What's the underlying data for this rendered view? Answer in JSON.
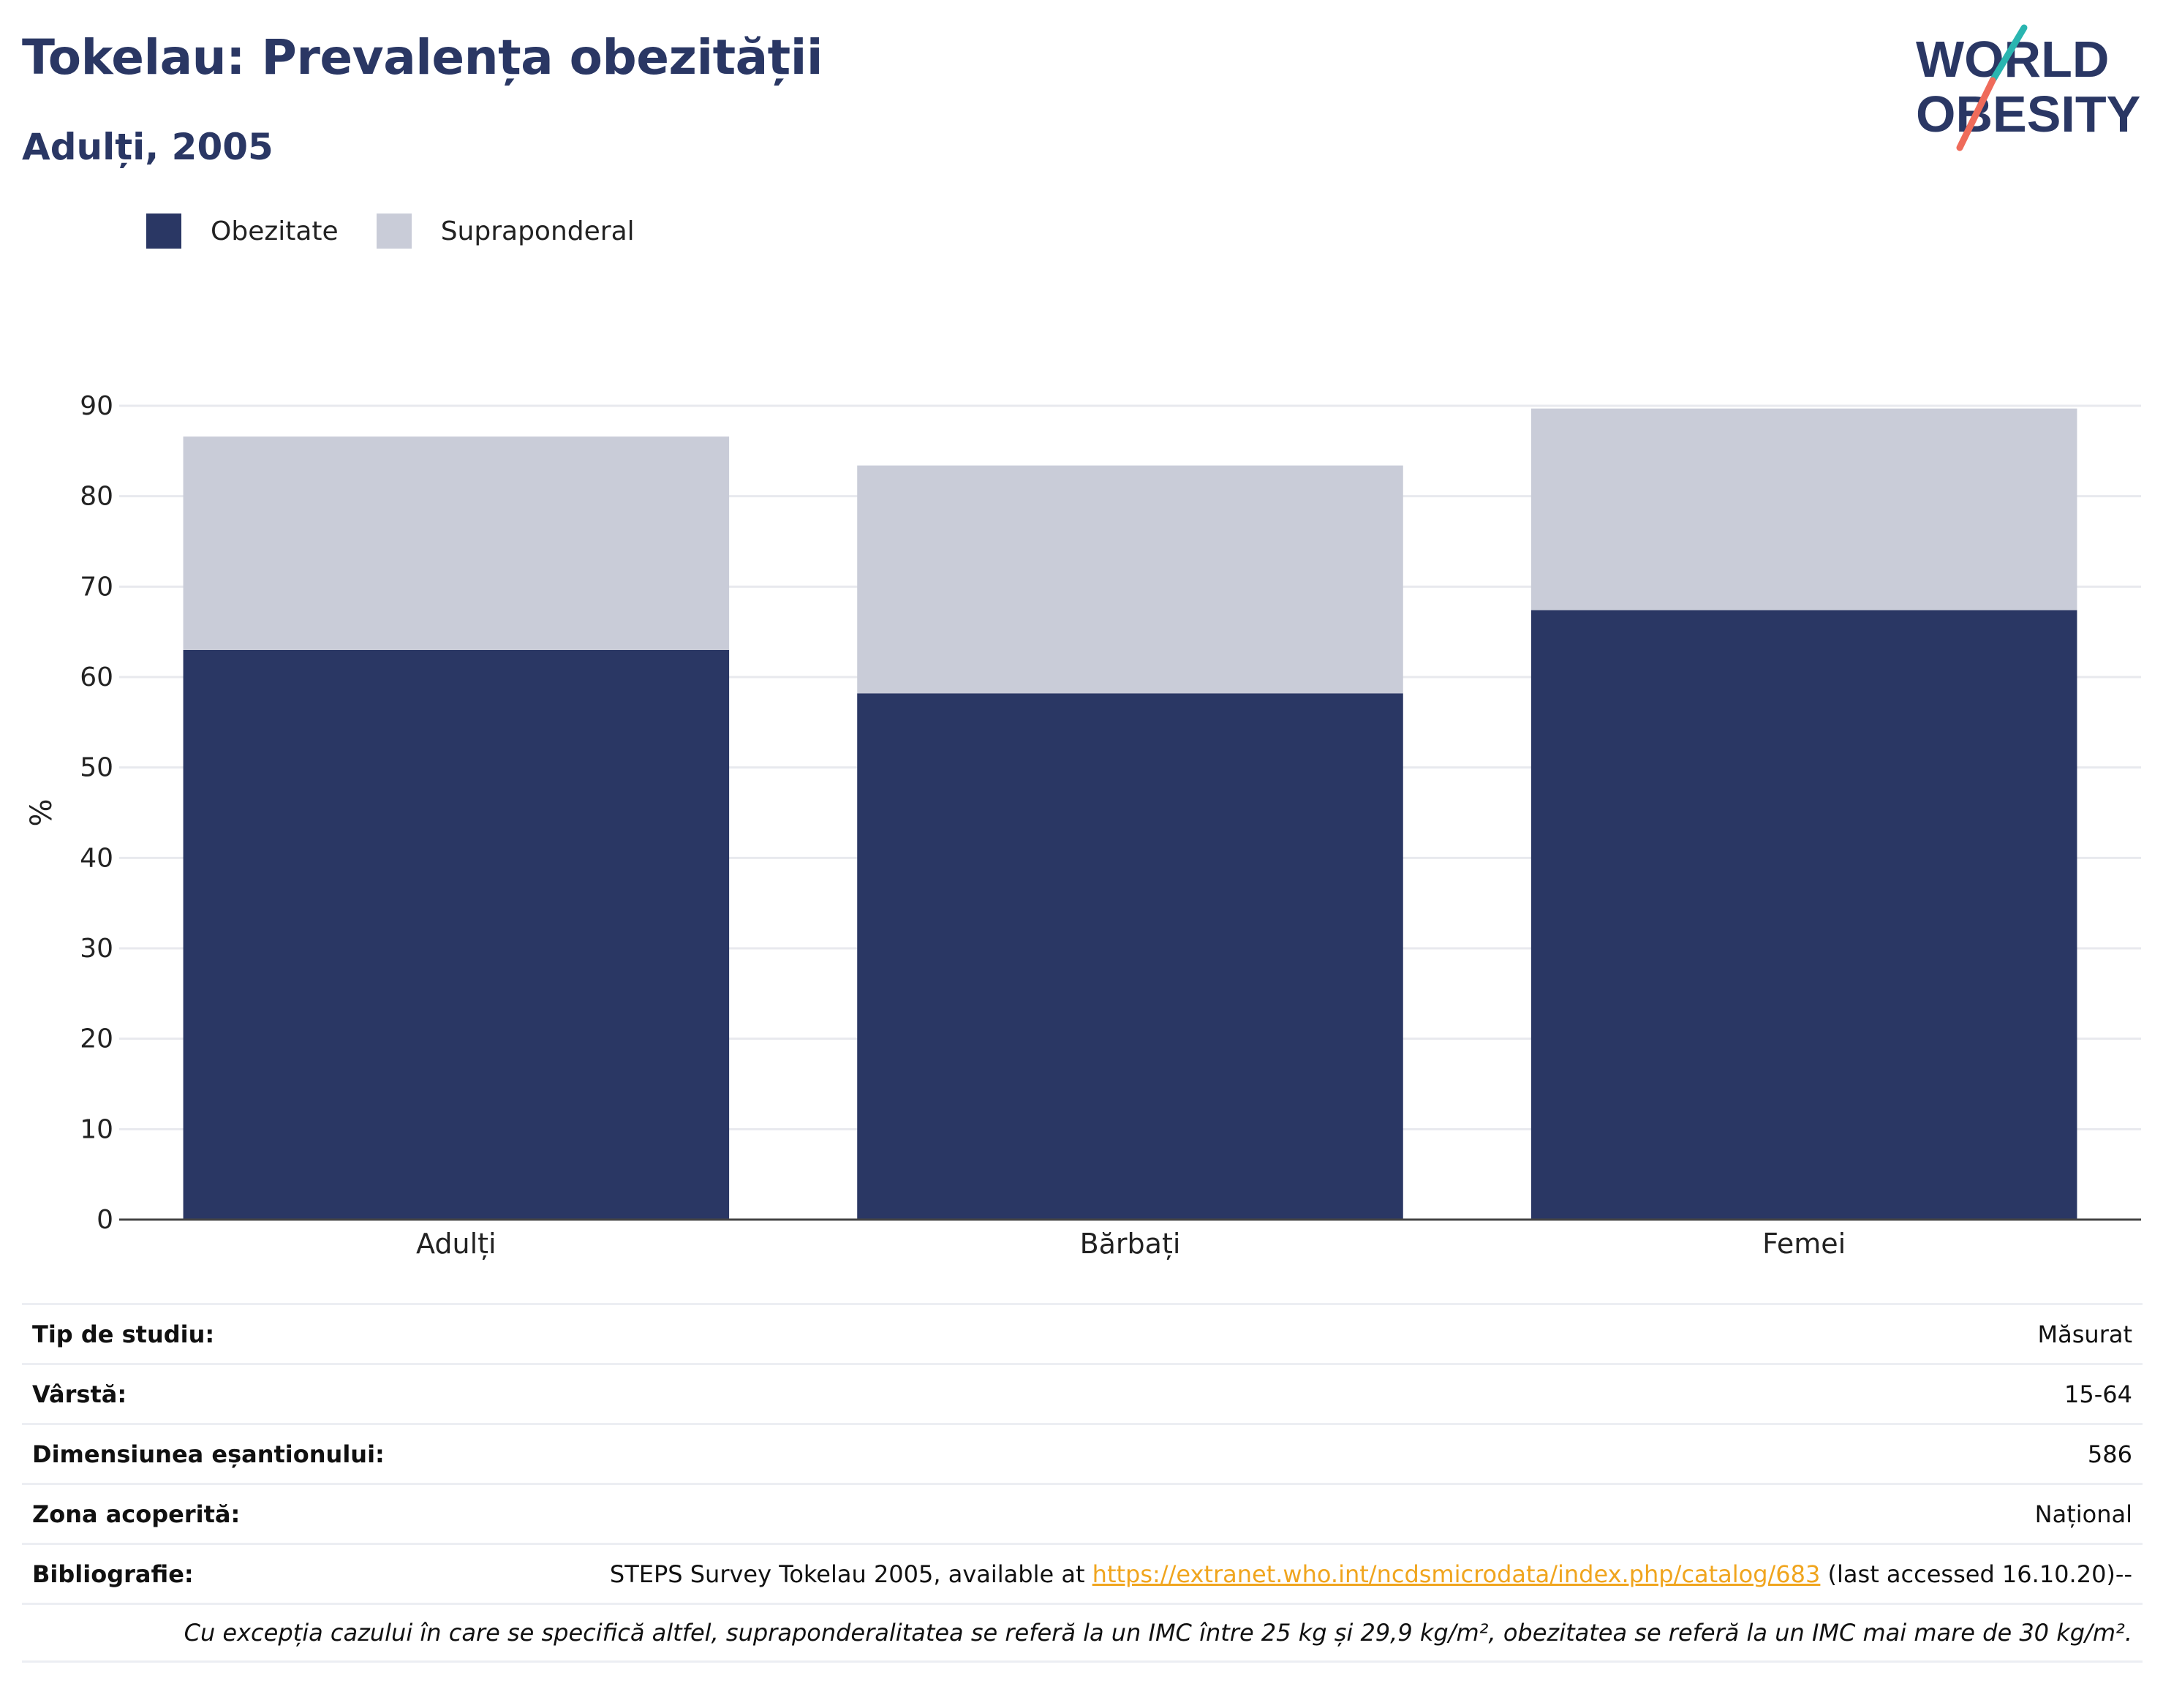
{
  "header": {
    "title": "Tokelau: Prevalența obezității",
    "subtitle": "Adulți, 2005",
    "logo_line1": "WORLD",
    "logo_line2": "OBESITY"
  },
  "legend": {
    "items": [
      {
        "label": "Obezitate",
        "color": "#2a3764"
      },
      {
        "label": "Supraponderal",
        "color": "#c9ccd8"
      }
    ]
  },
  "chart_data": {
    "type": "bar",
    "stacked": true,
    "categories": [
      "Adulți",
      "Bărbați",
      "Femei"
    ],
    "series": [
      {
        "name": "Obezitate",
        "values": [
          63.0,
          58.2,
          67.4
        ],
        "color": "#2a3764"
      },
      {
        "name": "Supraponderal",
        "values": [
          23.6,
          25.2,
          22.3
        ],
        "color": "#c9ccd8"
      }
    ],
    "ylabel": "%",
    "xlabel": "",
    "ylim": [
      0,
      90
    ],
    "yticks": [
      0,
      10,
      20,
      30,
      40,
      50,
      60,
      70,
      80,
      90
    ],
    "grid": true,
    "legend_position": "top-left"
  },
  "info": {
    "rows": [
      {
        "label": "Tip de studiu:",
        "value": "Măsurat"
      },
      {
        "label": "Vârstă:",
        "value": "15-64"
      },
      {
        "label": "Dimensiunea eșantionului:",
        "value": "586"
      },
      {
        "label": "Zona acoperită:",
        "value": "Național"
      }
    ],
    "bibliography": {
      "label": "Bibliografie:",
      "prefix": "STEPS Survey Tokelau 2005, available at ",
      "link": "https://extranet.who.int/ncdsmicrodata/index.php/catalog/683",
      "suffix": " (last accessed 16.10.20)--"
    },
    "note": "Cu excepția cazului în care se specifică altfel, supraponderalitatea se referă la un IMC între 25 kg și 29,9 kg/m², obezitatea se referă la un IMC mai mare de 30 kg/m²."
  }
}
